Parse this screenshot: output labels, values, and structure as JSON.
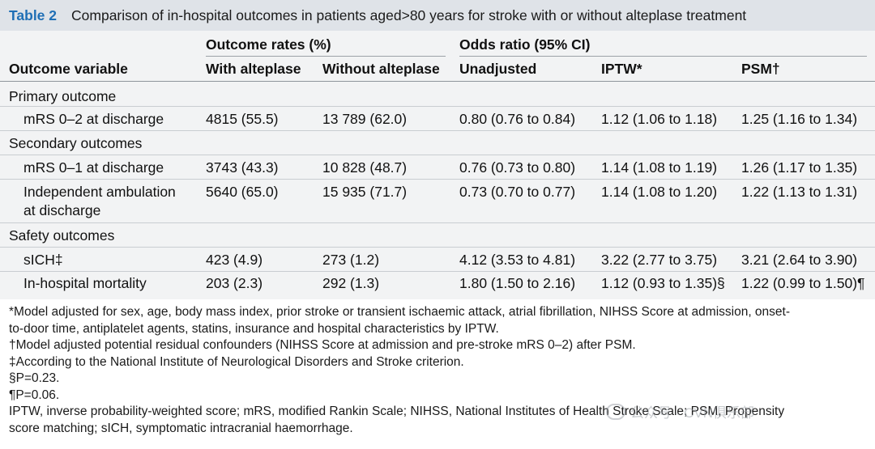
{
  "title": {
    "number": "Table 2",
    "text": "Comparison of in-hospital outcomes in patients aged>80 years for stroke with or without alteplase treatment"
  },
  "header": {
    "group_outcome_rates": "Outcome rates (%)",
    "group_odds_ratio": "Odds ratio (95% CI)",
    "col_variable": "Outcome variable",
    "col_with": "With alteplase",
    "col_without": "Without alteplase",
    "col_unadjusted": "Unadjusted",
    "col_iptw": "IPTW*",
    "col_psm": "PSM†"
  },
  "sections": {
    "primary": "Primary outcome",
    "secondary": "Secondary outcomes",
    "safety": "Safety outcomes"
  },
  "rows": {
    "mrs02": {
      "label": "mRS 0–2 at discharge",
      "with": "4815 (55.5)",
      "without": "13 789 (62.0)",
      "unadj": "0.80 (0.76 to 0.84)",
      "iptw": "1.12 (1.06 to 1.18)",
      "psm": "1.25 (1.16 to 1.34)"
    },
    "mrs01": {
      "label": "mRS 0–1 at discharge",
      "with": "3743 (43.3)",
      "without": "10 828 (48.7)",
      "unadj": "0.76 (0.73 to 0.80)",
      "iptw": "1.14 (1.08 to 1.19)",
      "psm": "1.26 (1.17 to 1.35)"
    },
    "ambulation": {
      "label_line1": "Independent ambulation",
      "label_line2": "at discharge",
      "with": "5640 (65.0)",
      "without": "15 935 (71.7)",
      "unadj": "0.73 (0.70 to 0.77)",
      "iptw": "1.14 (1.08 to 1.20)",
      "psm": "1.22 (1.13 to 1.31)"
    },
    "sich": {
      "label": "sICH‡",
      "with": "423 (4.9)",
      "without": "273 (1.2)",
      "unadj": "4.12 (3.53 to 4.81)",
      "iptw": "3.22 (2.77 to 3.75)",
      "psm": "3.21 (2.64 to 3.90)"
    },
    "mortality": {
      "label": "In-hospital mortality",
      "with": "203 (2.3)",
      "without": "292 (1.3)",
      "unadj": "1.80 (1.50 to 2.16)",
      "iptw": "1.12 (0.93 to 1.35)§",
      "psm": "1.22 (0.99 to 1.50)¶"
    }
  },
  "footnotes": {
    "f1_line1": "*Model adjusted for sex, age, body mass index, prior stroke or transient ischaemic attack, atrial fibrillation, NIHSS Score at admission, onset-",
    "f1_line2": "to-door time, antiplatelet agents, statins, insurance and hospital characteristics by IPTW.",
    "f2": "†Model adjusted potential residual confounders (NIHSS Score at admission and pre-stroke mRS 0–2) after PSM.",
    "f3": "‡According to the National Institute of Neurological Disorders and Stroke criterion.",
    "f4": "§P=0.23.",
    "f5": "¶P=0.06.",
    "abbr_line1": "IPTW, inverse probability-weighted score; mRS, modified Rankin Scale; NIHSS, National Institutes of Health Stroke Scale; PSM, Propensity",
    "abbr_line2": "score matching; sICH, symptomatic intracranial haemorrhage."
  },
  "watermark": {
    "text": "公众号 · CVN俱乐部",
    "icon": "wechat-icon"
  }
}
